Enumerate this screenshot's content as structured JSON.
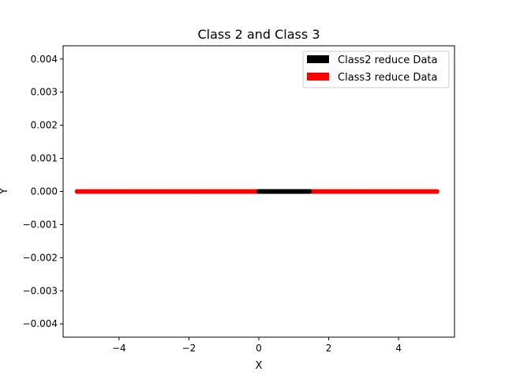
{
  "chart_data": {
    "type": "scatter",
    "title": "Class 2 and Class 3",
    "xlabel": "X",
    "ylabel": "Y",
    "xlim": [
      -5.6,
      5.6
    ],
    "ylim": [
      -0.0044,
      0.0044
    ],
    "x_ticks": [
      -4,
      -2,
      0,
      2,
      4
    ],
    "x_tick_labels": [
      "−4",
      "−2",
      "0",
      "2",
      "4"
    ],
    "y_ticks": [
      0.004,
      0.003,
      0.002,
      0.001,
      0.0,
      -0.001,
      -0.002,
      -0.003,
      -0.004
    ],
    "y_tick_labels": [
      "0.004",
      "0.003",
      "0.002",
      "0.001",
      "0.000",
      "−0.001",
      "−0.002",
      "−0.003",
      "−0.004"
    ],
    "grid": false,
    "legend_position": "top-right",
    "series": [
      {
        "name": "Class2 reduce Data",
        "color": "#000000",
        "x_min": 0.0,
        "x_max": 1.45,
        "y": 0.0,
        "count": 60
      },
      {
        "name": "Class3 reduce Data",
        "color": "#ff0000",
        "x_min": -5.2,
        "x_max": 5.1,
        "y": 0.0,
        "count": 220
      }
    ]
  }
}
